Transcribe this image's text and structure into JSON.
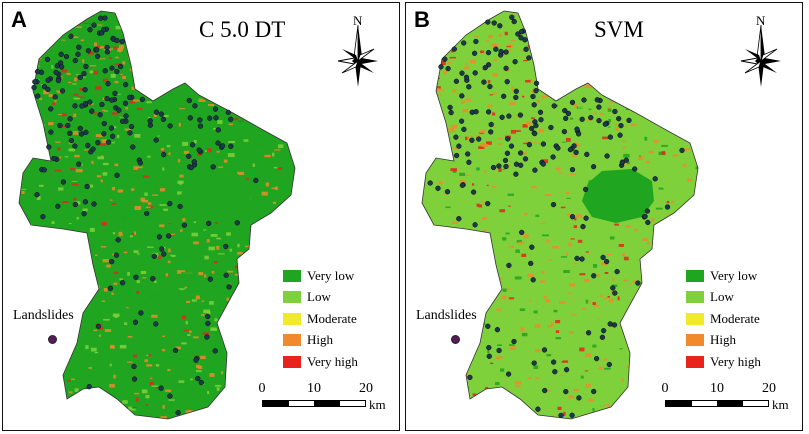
{
  "panels": [
    {
      "id": "A",
      "letter": "A",
      "title": "C 5.0 DT"
    },
    {
      "id": "B",
      "letter": "B",
      "title": "SVM"
    }
  ],
  "north_label": "N",
  "legend": [
    {
      "label": "Very low",
      "color": "#1fa51f"
    },
    {
      "label": "Low",
      "color": "#7fd13b"
    },
    {
      "label": "Moderate",
      "color": "#f0ea2a"
    },
    {
      "label": "High",
      "color": "#f08a2c"
    },
    {
      "label": "Very high",
      "color": "#e8231d"
    }
  ],
  "landslides_label": "Landslides",
  "landslide_color": "#5a1a5a",
  "scale": {
    "ticks": [
      "0",
      "10",
      "20"
    ],
    "unit": "km"
  }
}
